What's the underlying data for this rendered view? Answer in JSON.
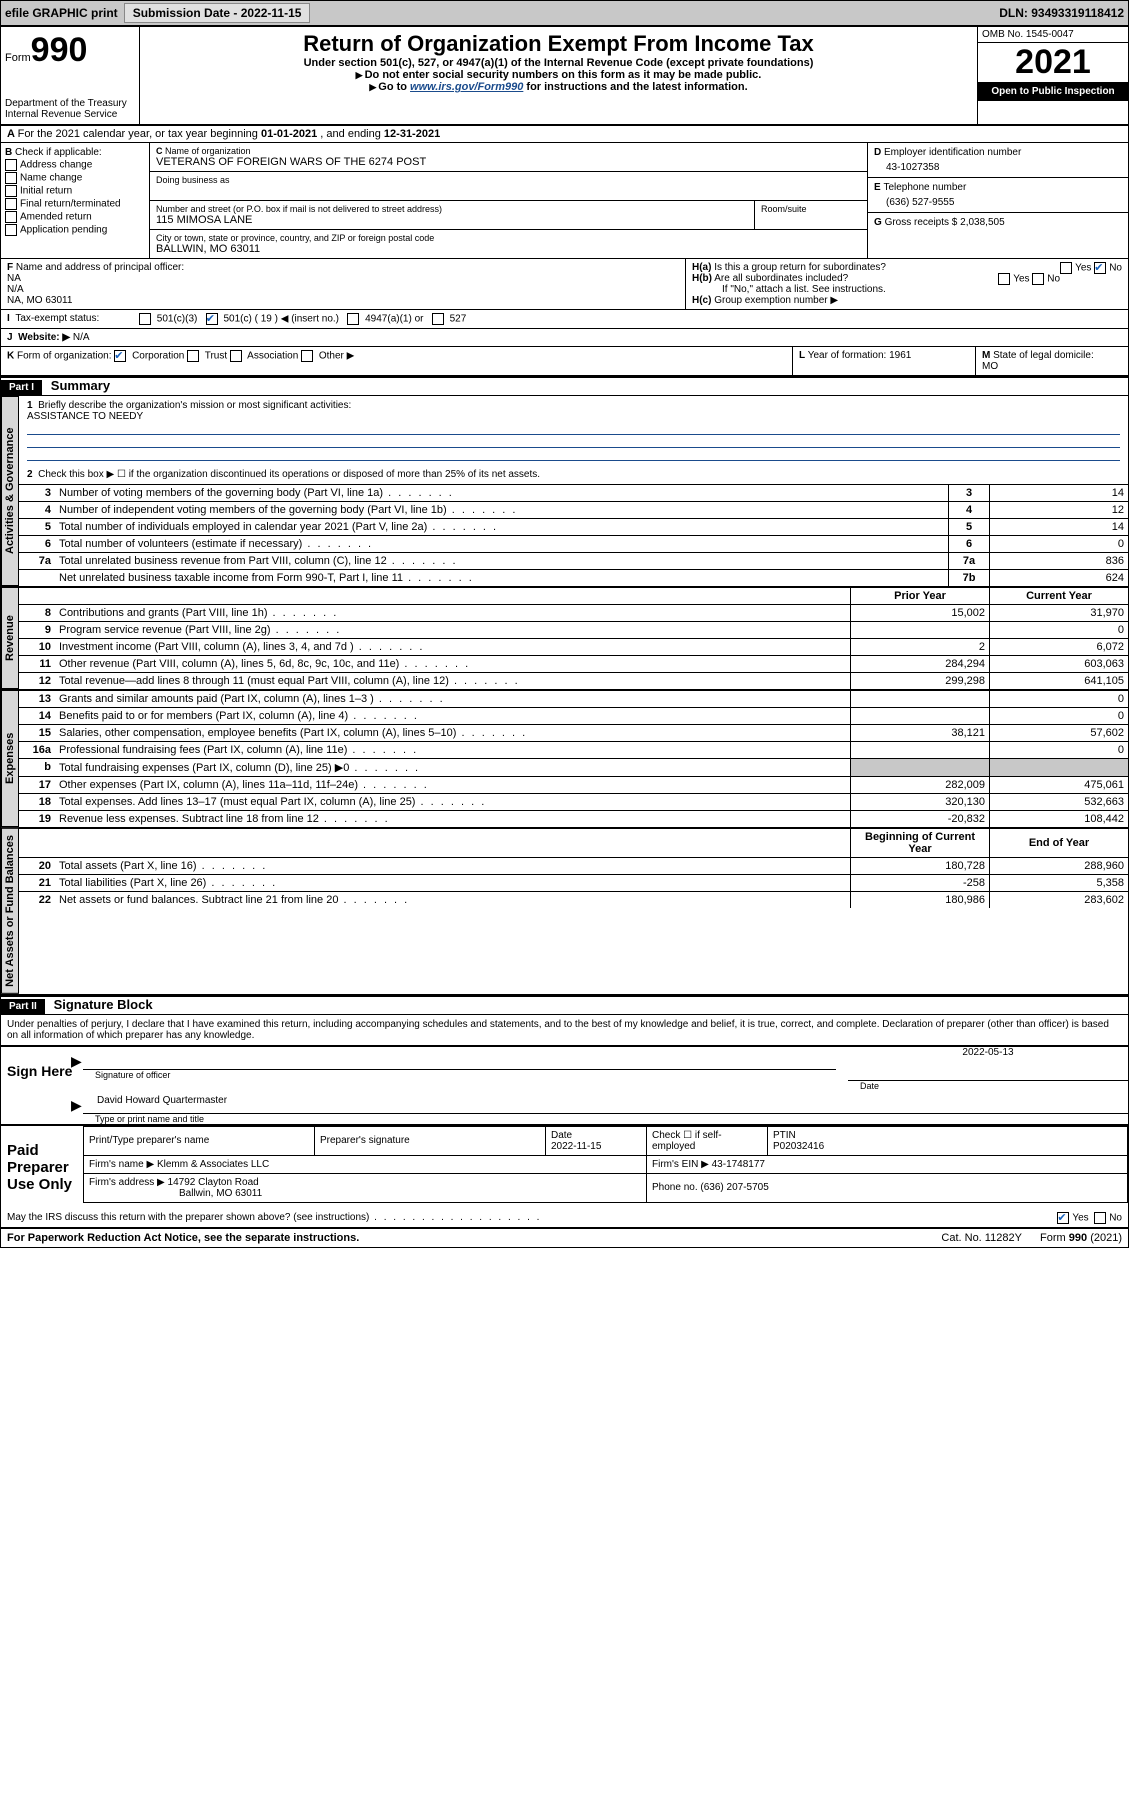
{
  "topbar": {
    "efile": "efile GRAPHIC print",
    "subdate_lbl": "Submission Date - ",
    "subdate": "2022-11-15",
    "dln_lbl": "DLN: ",
    "dln": "93493319118412"
  },
  "header": {
    "form_word": "Form",
    "form_num": "990",
    "dept": "Department of the Treasury",
    "irs": "Internal Revenue Service",
    "title": "Return of Organization Exempt From Income Tax",
    "sub": "Under section 501(c), 527, or 4947(a)(1) of the Internal Revenue Code (except private foundations)",
    "hint1": "Do not enter social security numbers on this form as it may be made public.",
    "hint2_pre": "Go to ",
    "hint2_link": "www.irs.gov/Form990",
    "hint2_post": " for instructions and the latest information.",
    "omb": "OMB No. 1545-0047",
    "year": "2021",
    "open": "Open to Public Inspection"
  },
  "lineA": {
    "text_pre": "For the 2021 calendar year, or tax year beginning ",
    "begin": "01-01-2021",
    "mid": " , and ending ",
    "end": "12-31-2021"
  },
  "lineB": {
    "title": "Check if applicable:",
    "opts": [
      "Address change",
      "Name change",
      "Initial return",
      "Final return/terminated",
      "Amended return",
      "Application pending"
    ]
  },
  "lineC": {
    "name_lbl": "Name of organization",
    "name": "VETERANS OF FOREIGN WARS OF THE 6274 POST",
    "dba_lbl": "Doing business as",
    "street_lbl": "Number and street (or P.O. box if mail is not delivered to street address)",
    "room_lbl": "Room/suite",
    "street": "115 MIMOSA LANE",
    "city_lbl": "City or town, state or province, country, and ZIP or foreign postal code",
    "city": "BALLWIN, MO  63011"
  },
  "lineD": {
    "lbl": "Employer identification number",
    "val": "43-1027358"
  },
  "lineE": {
    "lbl": "Telephone number",
    "val": "(636) 527-9555"
  },
  "lineG": {
    "lbl": "Gross receipts $",
    "val": "2,038,505"
  },
  "lineF": {
    "lbl": "Name and address of principal officer:",
    "l1": "NA",
    "l2": "N/A",
    "l3": "NA, MO  63011"
  },
  "lineH": {
    "ha": "Is this a group return for subordinates?",
    "hb": "Are all subordinates included?",
    "hb_note": "If \"No,\" attach a list. See instructions.",
    "hc": "Group exemption number ▶",
    "yes": "Yes",
    "no": "No"
  },
  "lineI": {
    "lbl": "Tax-exempt status:",
    "o1": "501(c)(3)",
    "o2": "501(c) ( 19 ) ◀ (insert no.)",
    "o3": "4947(a)(1) or",
    "o4": "527"
  },
  "lineJ": {
    "lbl": "Website: ▶",
    "val": "N/A"
  },
  "lineK": {
    "lbl": "Form of organization:",
    "o1": "Corporation",
    "o2": "Trust",
    "o3": "Association",
    "o4": "Other ▶"
  },
  "lineL": {
    "lbl": "Year of formation:",
    "val": "1961"
  },
  "lineM": {
    "lbl": "State of legal domicile:",
    "val": "MO"
  },
  "part1": {
    "bar": "Part I",
    "title": "Summary",
    "q1": "Briefly describe the organization's mission or most significant activities:",
    "q1v": "ASSISTANCE TO NEEDY",
    "q2": "Check this box ▶ ☐  if the organization discontinued its operations or disposed of more than 25% of its net assets.",
    "tabs": {
      "ag": "Activities & Governance",
      "rev": "Revenue",
      "exp": "Expenses",
      "net": "Net Assets or Fund Balances"
    },
    "hdr_prior": "Prior Year",
    "hdr_curr": "Current Year",
    "hdr_begin": "Beginning of Current Year",
    "hdr_end": "End of Year",
    "rows_ag": [
      {
        "n": "3",
        "d": "Number of voting members of the governing body (Part VI, line 1a)",
        "box": "3",
        "v": "14"
      },
      {
        "n": "4",
        "d": "Number of independent voting members of the governing body (Part VI, line 1b)",
        "box": "4",
        "v": "12"
      },
      {
        "n": "5",
        "d": "Total number of individuals employed in calendar year 2021 (Part V, line 2a)",
        "box": "5",
        "v": "14"
      },
      {
        "n": "6",
        "d": "Total number of volunteers (estimate if necessary)",
        "box": "6",
        "v": "0"
      },
      {
        "n": "7a",
        "d": "Total unrelated business revenue from Part VIII, column (C), line 12",
        "box": "7a",
        "v": "836"
      },
      {
        "n": "",
        "d": "Net unrelated business taxable income from Form 990-T, Part I, line 11",
        "box": "7b",
        "v": "624"
      }
    ],
    "rows_rev": [
      {
        "n": "8",
        "d": "Contributions and grants (Part VIII, line 1h)",
        "p": "15,002",
        "c": "31,970"
      },
      {
        "n": "9",
        "d": "Program service revenue (Part VIII, line 2g)",
        "p": "",
        "c": "0"
      },
      {
        "n": "10",
        "d": "Investment income (Part VIII, column (A), lines 3, 4, and 7d )",
        "p": "2",
        "c": "6,072"
      },
      {
        "n": "11",
        "d": "Other revenue (Part VIII, column (A), lines 5, 6d, 8c, 9c, 10c, and 11e)",
        "p": "284,294",
        "c": "603,063"
      },
      {
        "n": "12",
        "d": "Total revenue—add lines 8 through 11 (must equal Part VIII, column (A), line 12)",
        "p": "299,298",
        "c": "641,105"
      }
    ],
    "rows_exp": [
      {
        "n": "13",
        "d": "Grants and similar amounts paid (Part IX, column (A), lines 1–3 )",
        "p": "",
        "c": "0"
      },
      {
        "n": "14",
        "d": "Benefits paid to or for members (Part IX, column (A), line 4)",
        "p": "",
        "c": "0"
      },
      {
        "n": "15",
        "d": "Salaries, other compensation, employee benefits (Part IX, column (A), lines 5–10)",
        "p": "38,121",
        "c": "57,602"
      },
      {
        "n": "16a",
        "d": "Professional fundraising fees (Part IX, column (A), line 11e)",
        "p": "",
        "c": "0"
      },
      {
        "n": "b",
        "d": "Total fundraising expenses (Part IX, column (D), line 25) ▶0",
        "p": "__shade__",
        "c": "__shade__"
      },
      {
        "n": "17",
        "d": "Other expenses (Part IX, column (A), lines 11a–11d, 11f–24e)",
        "p": "282,009",
        "c": "475,061"
      },
      {
        "n": "18",
        "d": "Total expenses. Add lines 13–17 (must equal Part IX, column (A), line 25)",
        "p": "320,130",
        "c": "532,663"
      },
      {
        "n": "19",
        "d": "Revenue less expenses. Subtract line 18 from line 12",
        "p": "-20,832",
        "c": "108,442"
      }
    ],
    "rows_net": [
      {
        "n": "20",
        "d": "Total assets (Part X, line 16)",
        "p": "180,728",
        "c": "288,960"
      },
      {
        "n": "21",
        "d": "Total liabilities (Part X, line 26)",
        "p": "-258",
        "c": "5,358"
      },
      {
        "n": "22",
        "d": "Net assets or fund balances. Subtract line 21 from line 20",
        "p": "180,986",
        "c": "283,602"
      }
    ]
  },
  "part2": {
    "bar": "Part II",
    "title": "Signature Block",
    "decl": "Under penalties of perjury, I declare that I have examined this return, including accompanying schedules and statements, and to the best of my knowledge and belief, it is true, correct, and complete. Declaration of preparer (other than officer) is based on all information of which preparer has any knowledge.",
    "sign_here": "Sign Here",
    "sig_officer": "Signature of officer",
    "date_lbl": "Date",
    "date": "2022-05-13",
    "name_title": "David Howard Quartermaster",
    "name_cap": "Type or print name and title",
    "paid": "Paid Preparer Use Only",
    "pp_name_lbl": "Print/Type preparer's name",
    "pp_sig_lbl": "Preparer's signature",
    "pp_date_lbl": "Date",
    "pp_date": "2022-11-15",
    "pp_check": "Check ☐ if self-employed",
    "ptin_lbl": "PTIN",
    "ptin": "P02032416",
    "firm_name_lbl": "Firm's name  ▶",
    "firm_name": "Klemm & Associates LLC",
    "firm_ein_lbl": "Firm's EIN ▶",
    "firm_ein": "43-1748177",
    "firm_addr_lbl": "Firm's address ▶",
    "firm_addr1": "14792 Clayton Road",
    "firm_addr2": "Ballwin, MO  63011",
    "phone_lbl": "Phone no.",
    "phone": "(636) 207-5705",
    "may": "May the IRS discuss this return with the preparer shown above? (see instructions)",
    "yes": "Yes",
    "no": "No"
  },
  "footer": {
    "pra": "For Paperwork Reduction Act Notice, see the separate instructions.",
    "cat": "Cat. No. 11282Y",
    "form": "Form 990 (2021)"
  }
}
